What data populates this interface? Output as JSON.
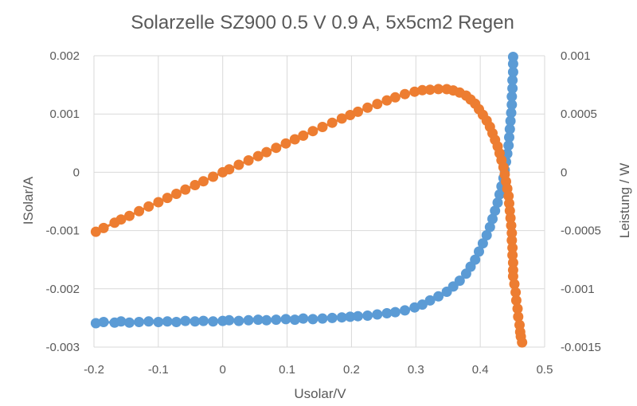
{
  "chart_data": {
    "type": "scatter",
    "title": "Solarzelle SZ900 0.5 V 0.9 A, 5x5cm2 Regen",
    "xlabel": "Usolar/V",
    "ylabel": "ISolar/A",
    "y2label": "Leistung / W",
    "xlim": [
      -0.2,
      0.5
    ],
    "ylim": [
      -0.003,
      0.002
    ],
    "y2lim": [
      -0.0015,
      0.001
    ],
    "x_ticks": [
      "-0.2",
      "-0.1",
      "0",
      "0.1",
      "0.2",
      "0.3",
      "0.4",
      "0.5"
    ],
    "y_ticks": [
      "-0.003",
      "-0.002",
      "-0.001",
      "0",
      "0.001",
      "0.002"
    ],
    "y2_ticks": [
      "-0.0015",
      "-0.001",
      "-0.0005",
      "0",
      "0.0005",
      "0.001"
    ],
    "grid": true,
    "legend": "none",
    "series": [
      {
        "name": "ISolar",
        "axis": "left",
        "color": "#5b9bd5",
        "points": [
          [
            -0.197,
            -0.00259
          ],
          [
            -0.185,
            -0.00257
          ],
          [
            -0.168,
            -0.00258
          ],
          [
            -0.158,
            -0.00256
          ],
          [
            -0.145,
            -0.00258
          ],
          [
            -0.13,
            -0.00257
          ],
          [
            -0.115,
            -0.00256
          ],
          [
            -0.1,
            -0.00257
          ],
          [
            -0.086,
            -0.00256
          ],
          [
            -0.072,
            -0.00257
          ],
          [
            -0.058,
            -0.00255
          ],
          [
            -0.043,
            -0.00256
          ],
          [
            -0.03,
            -0.00255
          ],
          [
            -0.015,
            -0.00256
          ],
          [
            0.0,
            -0.00255
          ],
          [
            0.01,
            -0.00254
          ],
          [
            0.025,
            -0.00255
          ],
          [
            0.04,
            -0.00254
          ],
          [
            0.055,
            -0.00253
          ],
          [
            0.068,
            -0.00254
          ],
          [
            0.083,
            -0.00253
          ],
          [
            0.098,
            -0.00252
          ],
          [
            0.112,
            -0.00253
          ],
          [
            0.125,
            -0.00251
          ],
          [
            0.14,
            -0.00252
          ],
          [
            0.155,
            -0.00251
          ],
          [
            0.17,
            -0.0025
          ],
          [
            0.185,
            -0.00249
          ],
          [
            0.198,
            -0.00248
          ],
          [
            0.21,
            -0.00247
          ],
          [
            0.225,
            -0.00246
          ],
          [
            0.24,
            -0.00244
          ],
          [
            0.255,
            -0.00242
          ],
          [
            0.268,
            -0.0024
          ],
          [
            0.283,
            -0.00237
          ],
          [
            0.298,
            -0.00232
          ],
          [
            0.31,
            -0.00227
          ],
          [
            0.322,
            -0.0022
          ],
          [
            0.335,
            -0.00213
          ],
          [
            0.348,
            -0.00205
          ],
          [
            0.358,
            -0.00196
          ],
          [
            0.368,
            -0.00186
          ],
          [
            0.378,
            -0.00174
          ],
          [
            0.385,
            -0.00162
          ],
          [
            0.392,
            -0.0015
          ],
          [
            0.398,
            -0.00136
          ],
          [
            0.404,
            -0.00122
          ],
          [
            0.41,
            -0.00108
          ],
          [
            0.415,
            -0.00094
          ],
          [
            0.419,
            -0.0008
          ],
          [
            0.423,
            -0.00066
          ],
          [
            0.427,
            -0.00052
          ],
          [
            0.43,
            -0.00038
          ],
          [
            0.433,
            -0.00024
          ],
          [
            0.436,
            -0.0001
          ],
          [
            0.438,
            4e-05
          ],
          [
            0.44,
            0.00018
          ],
          [
            0.442,
            0.00032
          ],
          [
            0.444,
            0.00046
          ],
          [
            0.445,
            0.0006
          ],
          [
            0.446,
            0.00074
          ],
          [
            0.447,
            0.00088
          ],
          [
            0.448,
            0.00102
          ],
          [
            0.449,
            0.00116
          ],
          [
            0.449,
            0.0013
          ],
          [
            0.45,
            0.00144
          ],
          [
            0.45,
            0.00158
          ],
          [
            0.451,
            0.00172
          ],
          [
            0.451,
            0.00186
          ],
          [
            0.451,
            0.00198
          ]
        ]
      },
      {
        "name": "Leistung",
        "axis": "right",
        "color": "#ed7d31",
        "points": [
          [
            -0.197,
            -0.00051
          ],
          [
            -0.185,
            -0.000478
          ],
          [
            -0.168,
            -0.000433
          ],
          [
            -0.158,
            -0.000405
          ],
          [
            -0.145,
            -0.000374
          ],
          [
            -0.13,
            -0.000334
          ],
          [
            -0.115,
            -0.000294
          ],
          [
            -0.1,
            -0.000257
          ],
          [
            -0.086,
            -0.00022
          ],
          [
            -0.072,
            -0.000185
          ],
          [
            -0.058,
            -0.000148
          ],
          [
            -0.043,
            -0.00011
          ],
          [
            -0.03,
            -7.7e-05
          ],
          [
            -0.015,
            -3.8e-05
          ],
          [
            0.0,
            0.0
          ],
          [
            0.01,
            2.5e-05
          ],
          [
            0.025,
            6.4e-05
          ],
          [
            0.04,
            0.000102
          ],
          [
            0.055,
            0.000139
          ],
          [
            0.068,
            0.000173
          ],
          [
            0.083,
            0.00021
          ],
          [
            0.098,
            0.000247
          ],
          [
            0.112,
            0.000283
          ],
          [
            0.125,
            0.000314
          ],
          [
            0.14,
            0.000353
          ],
          [
            0.155,
            0.000389
          ],
          [
            0.17,
            0.000425
          ],
          [
            0.185,
            0.000461
          ],
          [
            0.198,
            0.000491
          ],
          [
            0.21,
            0.000519
          ],
          [
            0.225,
            0.000554
          ],
          [
            0.24,
            0.000586
          ],
          [
            0.255,
            0.000617
          ],
          [
            0.268,
            0.000643
          ],
          [
            0.283,
            0.000671
          ],
          [
            0.298,
            0.000691
          ],
          [
            0.31,
            0.000704
          ],
          [
            0.322,
            0.000708
          ],
          [
            0.335,
            0.000714
          ],
          [
            0.348,
            0.000713
          ],
          [
            0.358,
            0.000702
          ],
          [
            0.368,
            0.000684
          ],
          [
            0.378,
            0.000658
          ],
          [
            0.385,
            0.000624
          ],
          [
            0.392,
            0.000588
          ],
          [
            0.398,
            0.000541
          ],
          [
            0.404,
            0.000493
          ],
          [
            0.41,
            0.000443
          ],
          [
            0.415,
            0.00039
          ],
          [
            0.419,
            0.000335
          ],
          [
            0.423,
            0.000279
          ],
          [
            0.427,
            0.000222
          ],
          [
            0.43,
            0.000163
          ],
          [
            0.433,
            0.000104
          ],
          [
            0.436,
            4.4e-05
          ],
          [
            0.438,
            -1.8e-05
          ],
          [
            0.44,
            -7.9e-05
          ],
          [
            0.442,
            -0.000141
          ],
          [
            0.444,
            -0.000204
          ],
          [
            0.445,
            -0.000267
          ],
          [
            0.446,
            -0.00033
          ],
          [
            0.447,
            -0.000393
          ],
          [
            0.448,
            -0.000457
          ],
          [
            0.449,
            -0.000521
          ],
          [
            0.449,
            -0.000584
          ],
          [
            0.45,
            -0.000648
          ],
          [
            0.45,
            -0.000711
          ],
          [
            0.451,
            -0.000776
          ],
          [
            0.451,
            -0.000839
          ],
          [
            0.451,
            -0.000893
          ],
          [
            0.453,
            -0.00096
          ],
          [
            0.455,
            -0.00103
          ],
          [
            0.456,
            -0.0011
          ],
          [
            0.458,
            -0.00117
          ],
          [
            0.459,
            -0.00124
          ],
          [
            0.461,
            -0.00131
          ],
          [
            0.462,
            -0.00137
          ],
          [
            0.463,
            -0.00141
          ],
          [
            0.465,
            -0.00146
          ]
        ]
      }
    ]
  }
}
